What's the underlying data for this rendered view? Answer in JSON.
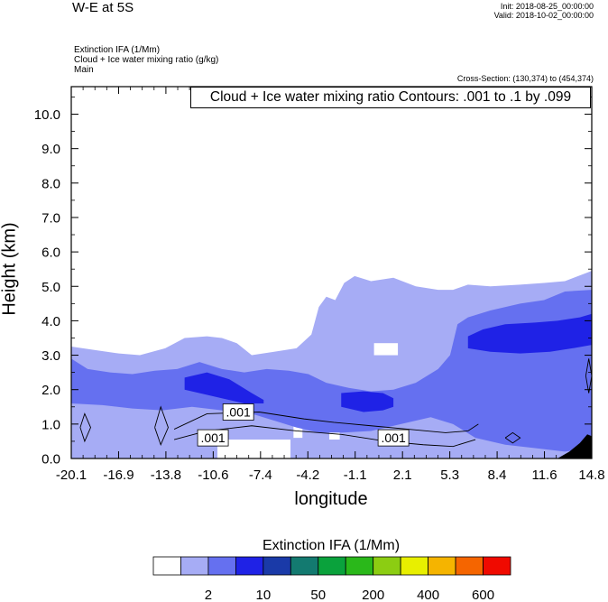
{
  "header": {
    "title": "W-E at 5S",
    "init": "Init: 2018-08-25_00:00:00",
    "valid": "Valid: 2018-10-02_00:00:00",
    "var_line1": "Extinction IFA   (1/Mm)",
    "var_line2": "Cloud + Ice water mixing ratio   (g/kg)",
    "var_line3": "Main",
    "cross_section": "Cross-Section: (130,374) to (454,374)",
    "contour_label": "Cloud + Ice water mixing ratio Contours: .001 to .1 by .099"
  },
  "chart_data": {
    "type": "contour",
    "title": "W-E at 5S",
    "xlabel": "longitude",
    "ylabel": "Height (km)",
    "x_ticks": [
      "-20.1",
      "-16.9",
      "-13.8",
      "-10.6",
      "-7.4",
      "-4.2",
      "-1.1",
      "2.1",
      "5.3",
      "8.4",
      "11.6",
      "14.8"
    ],
    "x_range": [
      -20.1,
      14.8
    ],
    "y_ticks": [
      "0.0",
      "1.0",
      "2.0",
      "3.0",
      "4.0",
      "5.0",
      "6.0",
      "7.0",
      "8.0",
      "9.0",
      "10.0"
    ],
    "y_range": [
      0,
      10.8
    ],
    "colors": {
      "level1": "#a6acf5",
      "level2": "#6570f0",
      "level3": "#1f22e6",
      "terrain": "#000000"
    },
    "shaded_layers": [
      {
        "name": "extinction-level-1",
        "color_key": "level1",
        "top": [
          [
            -20.1,
            3.25
          ],
          [
            -18.5,
            3.15
          ],
          [
            -16.9,
            3.05
          ],
          [
            -15.5,
            3.0
          ],
          [
            -13.8,
            3.2
          ],
          [
            -12.5,
            3.5
          ],
          [
            -11.0,
            3.55
          ],
          [
            -10.0,
            3.5
          ],
          [
            -9.0,
            3.35
          ],
          [
            -8.0,
            3.0
          ],
          [
            -6.5,
            3.1
          ],
          [
            -5.0,
            3.2
          ],
          [
            -4.0,
            3.6
          ],
          [
            -3.5,
            4.4
          ],
          [
            -3.0,
            4.7
          ],
          [
            -2.4,
            4.6
          ],
          [
            -1.8,
            5.1
          ],
          [
            -1.1,
            5.3
          ],
          [
            0.0,
            5.15
          ],
          [
            1.5,
            5.25
          ],
          [
            3.0,
            5.0
          ],
          [
            4.5,
            4.9
          ],
          [
            5.5,
            4.9
          ],
          [
            6.5,
            5.05
          ],
          [
            8.0,
            5.0
          ],
          [
            10.0,
            5.05
          ],
          [
            11.6,
            5.1
          ],
          [
            13.0,
            5.15
          ],
          [
            14.8,
            5.45
          ]
        ],
        "bottom": [
          [
            -20.1,
            0.0
          ],
          [
            14.8,
            0.0
          ]
        ],
        "gaps": [
          [
            -10.3,
            0.0,
            -5.4,
            0.55
          ],
          [
            -5.2,
            0.6,
            -4.6,
            1.05
          ],
          [
            -2.8,
            0.55,
            -2.1,
            1.05
          ],
          [
            -4.5,
            1.45,
            -4.0,
            1.75
          ],
          [
            0.2,
            3.0,
            1.8,
            3.35
          ]
        ]
      },
      {
        "name": "extinction-level-2",
        "color_key": "level2",
        "top": [
          [
            -20.1,
            2.9
          ],
          [
            -19.0,
            2.6
          ],
          [
            -17.5,
            2.5
          ],
          [
            -16.0,
            2.45
          ],
          [
            -14.5,
            2.55
          ],
          [
            -13.0,
            2.6
          ],
          [
            -11.5,
            2.8
          ],
          [
            -10.0,
            2.6
          ],
          [
            -8.5,
            2.5
          ],
          [
            -7.0,
            2.6
          ],
          [
            -5.5,
            2.55
          ],
          [
            -4.2,
            2.45
          ],
          [
            -3.0,
            2.2
          ],
          [
            -1.5,
            2.05
          ],
          [
            0.0,
            1.95
          ],
          [
            1.5,
            2.0
          ],
          [
            3.0,
            2.2
          ],
          [
            4.5,
            2.6
          ],
          [
            5.3,
            3.0
          ],
          [
            5.8,
            3.9
          ],
          [
            6.5,
            4.1
          ],
          [
            8.0,
            4.3
          ],
          [
            10.0,
            4.5
          ],
          [
            11.6,
            4.6
          ],
          [
            13.0,
            4.85
          ],
          [
            14.8,
            4.9
          ]
        ],
        "bottom": [
          [
            -20.1,
            1.6
          ],
          [
            -18.0,
            1.55
          ],
          [
            -16.0,
            1.45
          ],
          [
            -14.0,
            1.4
          ],
          [
            -12.0,
            1.5
          ],
          [
            -10.0,
            1.4
          ],
          [
            -8.0,
            1.3
          ],
          [
            -6.5,
            1.1
          ],
          [
            -5.0,
            0.9
          ],
          [
            -3.5,
            0.75
          ],
          [
            -2.0,
            0.75
          ],
          [
            0.0,
            0.8
          ],
          [
            2.0,
            1.0
          ],
          [
            4.0,
            1.2
          ],
          [
            5.5,
            1.0
          ],
          [
            7.0,
            0.6
          ],
          [
            9.0,
            0.4
          ],
          [
            11.0,
            0.3
          ],
          [
            13.0,
            0.2
          ],
          [
            14.8,
            0.3
          ]
        ],
        "gaps": []
      },
      {
        "name": "extinction-level-3",
        "color_key": "level3",
        "top": [
          [
            6.5,
            3.55
          ],
          [
            7.5,
            3.75
          ],
          [
            9.0,
            3.9
          ],
          [
            11.0,
            3.95
          ],
          [
            12.5,
            4.0
          ],
          [
            14.0,
            4.1
          ],
          [
            14.8,
            4.2
          ]
        ],
        "bottom": [
          [
            6.5,
            3.2
          ],
          [
            8.0,
            3.1
          ],
          [
            10.0,
            3.05
          ],
          [
            12.0,
            3.1
          ],
          [
            13.5,
            3.2
          ],
          [
            14.8,
            3.3
          ]
        ],
        "gaps": []
      },
      {
        "name": "extinction-level-3b",
        "color_key": "level3",
        "top": [
          [
            -12.5,
            2.35
          ],
          [
            -11.0,
            2.5
          ],
          [
            -9.5,
            2.3
          ],
          [
            -8.0,
            1.9
          ],
          [
            -7.2,
            1.7
          ]
        ],
        "bottom": [
          [
            -12.5,
            2.0
          ],
          [
            -10.5,
            1.8
          ],
          [
            -8.5,
            1.6
          ],
          [
            -7.2,
            1.6
          ]
        ],
        "gaps": []
      },
      {
        "name": "extinction-level-3c",
        "color_key": "level3",
        "top": [
          [
            -2.0,
            1.9
          ],
          [
            -0.5,
            1.95
          ],
          [
            0.8,
            1.9
          ],
          [
            1.5,
            1.75
          ]
        ],
        "bottom": [
          [
            -2.0,
            1.5
          ],
          [
            -0.5,
            1.35
          ],
          [
            0.8,
            1.4
          ],
          [
            1.5,
            1.5
          ]
        ],
        "gaps": []
      }
    ],
    "contours": [
      {
        "label": ".001",
        "value": 0.001,
        "points": [
          [
            -13.2,
            0.85
          ],
          [
            -11.0,
            1.3
          ],
          [
            -7.5,
            1.35
          ],
          [
            -4.5,
            1.15
          ],
          [
            -2.5,
            1.05
          ],
          [
            0.0,
            0.95
          ],
          [
            2.5,
            0.85
          ],
          [
            5.0,
            0.75
          ],
          [
            6.5,
            0.8
          ],
          [
            7.2,
            1.0
          ]
        ]
      },
      {
        "label": ".001",
        "value": 0.001,
        "points": [
          [
            -13.2,
            0.55
          ],
          [
            -11.0,
            0.8
          ],
          [
            -8.0,
            0.95
          ],
          [
            -5.0,
            0.8
          ],
          [
            -2.0,
            0.7
          ],
          [
            1.0,
            0.5
          ],
          [
            3.5,
            0.4
          ],
          [
            5.5,
            0.35
          ],
          [
            7.0,
            0.55
          ]
        ]
      },
      {
        "label": ".001",
        "value": 0.001,
        "points": [
          [
            -19.5,
            0.9
          ],
          [
            -19.2,
            1.3
          ],
          [
            -18.8,
            0.9
          ],
          [
            -19.2,
            0.5
          ],
          [
            -19.5,
            0.9
          ]
        ]
      },
      {
        "label": ".001",
        "value": 0.001,
        "points": [
          [
            -14.5,
            0.9
          ],
          [
            -14.1,
            1.5
          ],
          [
            -13.6,
            0.9
          ],
          [
            -14.1,
            0.4
          ],
          [
            -14.5,
            0.9
          ]
        ]
      },
      {
        "label": ".001",
        "value": 0.001,
        "points": [
          [
            9.0,
            0.6
          ],
          [
            9.5,
            0.75
          ],
          [
            10.0,
            0.6
          ],
          [
            9.5,
            0.45
          ],
          [
            9.0,
            0.6
          ]
        ]
      },
      {
        "label": ".001",
        "value": 0.001,
        "points": [
          [
            14.4,
            2.4
          ],
          [
            14.6,
            2.9
          ],
          [
            14.8,
            2.4
          ],
          [
            14.6,
            1.9
          ],
          [
            14.4,
            2.4
          ]
        ]
      }
    ],
    "contour_labels": [
      {
        "text": ".001",
        "x": -8.9,
        "y": 1.35
      },
      {
        "text": ".001",
        "x": -10.6,
        "y": 0.6
      },
      {
        "text": ".001",
        "x": 1.5,
        "y": 0.6
      }
    ],
    "terrain": [
      [
        12.5,
        0.0
      ],
      [
        13.3,
        0.2
      ],
      [
        14.0,
        0.45
      ],
      [
        14.5,
        0.7
      ],
      [
        14.8,
        0.65
      ],
      [
        14.8,
        0.0
      ]
    ],
    "colorbar": {
      "title": "Extinction IFA  (1/Mm)",
      "colors": [
        "#ffffff",
        "#a6acf5",
        "#6570f0",
        "#1f22e6",
        "#1a3aa8",
        "#137a70",
        "#0aa23c",
        "#2ab81a",
        "#8ccd12",
        "#e8ef00",
        "#f5b400",
        "#f56500",
        "#f00a00"
      ],
      "labels": [
        {
          "text": "2",
          "index": 1
        },
        {
          "text": "10",
          "index": 3
        },
        {
          "text": "50",
          "index": 5
        },
        {
          "text": "200",
          "index": 7
        },
        {
          "text": "400",
          "index": 9
        },
        {
          "text": "600",
          "index": 11
        }
      ]
    }
  }
}
